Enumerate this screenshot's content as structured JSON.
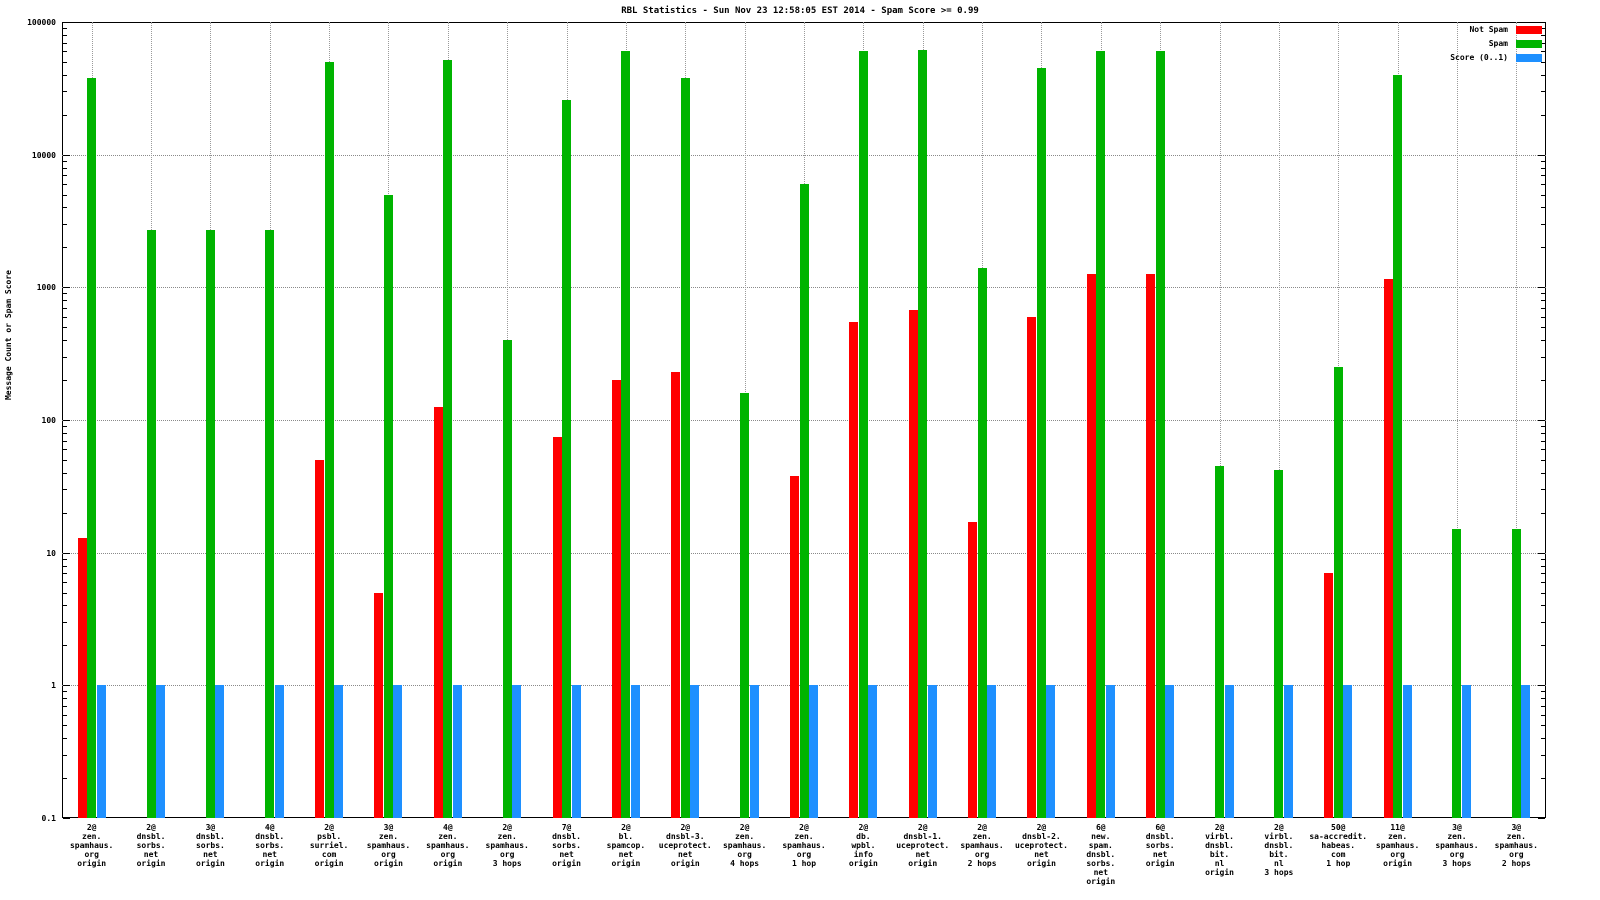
{
  "title": "RBL Statistics - Sun Nov 23 12:58:05 EST 2014 - Spam Score >= 0.99",
  "ylabel": "Message Count or Spam Score",
  "legend": [
    {
      "label": "Not Spam",
      "color": "#ff0000"
    },
    {
      "label": "Spam",
      "color": "#00b400"
    },
    {
      "label": "Score (0..1)",
      "color": "#1e90ff"
    }
  ],
  "chart_data": {
    "type": "bar",
    "log_scale": true,
    "ylim": [
      0.1,
      100000
    ],
    "grid": true,
    "legend_position": "top-right",
    "yticks": [
      {
        "v": 100000,
        "label": "100000"
      },
      {
        "v": 10000,
        "label": "10000"
      },
      {
        "v": 1000,
        "label": "1000"
      },
      {
        "v": 100,
        "label": "100"
      },
      {
        "v": 10,
        "label": "10"
      },
      {
        "v": 1,
        "label": "1"
      },
      {
        "v": 0.1,
        "label": "0.1"
      }
    ],
    "categories": [
      [
        "2@",
        "zen.",
        "spamhaus.",
        "org",
        "origin"
      ],
      [
        "2@",
        "dnsbl.",
        "sorbs.",
        "net",
        "origin"
      ],
      [
        "3@",
        "dnsbl.",
        "sorbs.",
        "net",
        "origin"
      ],
      [
        "4@",
        "dnsbl.",
        "sorbs.",
        "net",
        "origin"
      ],
      [
        "2@",
        "psbl.",
        "surriel.",
        "com",
        "origin"
      ],
      [
        "3@",
        "zen.",
        "spamhaus.",
        "org",
        "origin"
      ],
      [
        "4@",
        "zen.",
        "spamhaus.",
        "org",
        "origin"
      ],
      [
        "2@",
        "zen.",
        "spamhaus.",
        "org",
        "3 hops"
      ],
      [
        "7@",
        "dnsbl.",
        "sorbs.",
        "net",
        "origin"
      ],
      [
        "2@",
        "bl.",
        "spamcop.",
        "net",
        "origin"
      ],
      [
        "2@",
        "dnsbl-3.",
        "uceprotect.",
        "net",
        "origin"
      ],
      [
        "2@",
        "zen.",
        "spamhaus.",
        "org",
        "4 hops"
      ],
      [
        "2@",
        "zen.",
        "spamhaus.",
        "org",
        "1 hop"
      ],
      [
        "2@",
        "db.",
        "wpbl.",
        "info",
        "origin"
      ],
      [
        "2@",
        "dnsbl-1.",
        "uceprotect.",
        "net",
        "origin"
      ],
      [
        "2@",
        "zen.",
        "spamhaus.",
        "org",
        "2 hops"
      ],
      [
        "2@",
        "dnsbl-2.",
        "uceprotect.",
        "net",
        "origin"
      ],
      [
        "6@",
        "new.",
        "spam.",
        "dnsbl.",
        "sorbs.",
        "net",
        "origin"
      ],
      [
        "6@",
        "dnsbl.",
        "sorbs.",
        "net",
        "origin"
      ],
      [
        "2@",
        "virbl.",
        "dnsbl.",
        "bit.",
        "nl",
        "origin"
      ],
      [
        "2@",
        "virbl.",
        "dnsbl.",
        "bit.",
        "nl",
        "3 hops"
      ],
      [
        "50@",
        "sa-accredit.",
        "habeas.",
        "com",
        "1 hop"
      ],
      [
        "11@",
        "zen.",
        "spamhaus.",
        "org",
        "origin"
      ],
      [
        "3@",
        "zen.",
        "spamhaus.",
        "org",
        "3 hops"
      ],
      [
        "3@",
        "zen.",
        "spamhaus.",
        "org",
        "2 hops"
      ]
    ],
    "series": [
      {
        "name": "Not Spam",
        "key": "not-spam",
        "color": "#ff0000",
        "values": [
          13,
          null,
          null,
          null,
          50,
          5,
          125,
          null,
          75,
          200,
          230,
          null,
          38,
          550,
          680,
          17,
          600,
          1250,
          1250,
          null,
          null,
          7,
          1150,
          null,
          null
        ]
      },
      {
        "name": "Spam",
        "key": "spam",
        "color": "#00b400",
        "values": [
          38000,
          2700,
          2700,
          2700,
          50000,
          5000,
          52000,
          400,
          26000,
          60000,
          38000,
          160,
          6000,
          60000,
          62000,
          1400,
          45000,
          60000,
          60000,
          45,
          42,
          250,
          40000,
          15,
          15
        ]
      },
      {
        "name": "Score (0..1)",
        "key": "score",
        "color": "#1e90ff",
        "values": [
          1,
          1,
          1,
          1,
          1,
          1,
          1,
          1,
          1,
          1,
          1,
          1,
          1,
          1,
          1,
          1,
          1,
          1,
          1,
          1,
          1,
          1,
          1,
          1,
          1
        ]
      }
    ]
  }
}
